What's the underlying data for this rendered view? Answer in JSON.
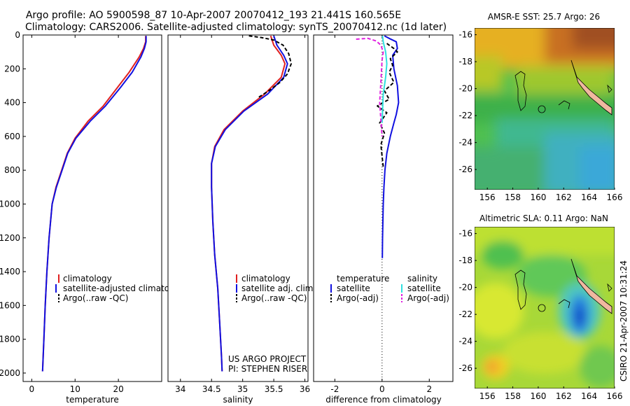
{
  "title_line1": "Argo profile: AO 5900598_87 10-Apr-2007 20070412_193 21.441S 160.565E",
  "title_line2": "Climatology: CARS2006. Satellite-adjusted climatology: synTS_20070412.nc (1d later)",
  "credits": [
    "US ARGO PROJECT",
    "PI: STEPHEN RISER"
  ],
  "timestamp": "CSIRO 21-Apr-2007 10:31:24",
  "colors": {
    "red": "#e02020",
    "blue": "#1010e0",
    "black": "#000000",
    "cyan": "#30e0e0",
    "magenta": "#e020e0"
  },
  "chart_data": [
    {
      "id": "temperature",
      "type": "line",
      "xlabel": "temperature",
      "xlim": [
        -2,
        30
      ],
      "ylim": [
        2050,
        0
      ],
      "xticks": [
        0,
        10,
        20
      ],
      "yticks": [
        0,
        200,
        400,
        600,
        800,
        1000,
        1200,
        1400,
        1600,
        1800,
        2000
      ],
      "legend": {
        "placement": "lower-center",
        "entries": [
          {
            "label": "climatology",
            "color": "#e02020"
          },
          {
            "label": "satellite-adjusted climatology",
            "color": "#1010e0"
          },
          {
            "label": "Argo(..raw -QC)",
            "color": "#000000"
          }
        ]
      },
      "series": [
        {
          "name": "climatology",
          "color": "#e02020",
          "dash": false,
          "x": [
            26.3,
            26.3,
            25.8,
            24.8,
            22.5,
            19.8,
            16.5,
            13.0,
            10.0,
            8.2,
            6.9,
            5.6,
            4.7,
            4.0,
            3.5,
            3.1,
            2.8,
            2.5
          ],
          "y": [
            5,
            40,
            80,
            130,
            220,
            310,
            420,
            510,
            610,
            700,
            800,
            900,
            1000,
            1200,
            1400,
            1600,
            1800,
            1990
          ]
        },
        {
          "name": "satellite-adjusted climatology",
          "color": "#1010e0",
          "dash": false,
          "x": [
            26.4,
            26.4,
            26.0,
            25.2,
            23.2,
            20.5,
            17.0,
            13.5,
            10.2,
            8.3,
            7.0,
            5.7,
            4.7,
            4.0,
            3.5,
            3.1,
            2.8,
            2.5
          ],
          "y": [
            5,
            40,
            80,
            130,
            220,
            310,
            420,
            510,
            610,
            700,
            800,
            900,
            1000,
            1200,
            1400,
            1600,
            1800,
            1990
          ]
        }
      ]
    },
    {
      "id": "salinity",
      "type": "line",
      "xlabel": "salinity",
      "xlim": [
        33.8,
        36.05
      ],
      "ylim": [
        2050,
        0
      ],
      "xticks": [
        34,
        34.5,
        35,
        35.5,
        36
      ],
      "yticks": [],
      "legend": {
        "placement": "lower-center",
        "entries": [
          {
            "label": "climatology",
            "color": "#e02020"
          },
          {
            "label": "satellite adj. clim.",
            "color": "#1010e0"
          },
          {
            "label": "Argo(..raw -QC)",
            "color": "#000000"
          }
        ]
      },
      "series": [
        {
          "name": "climatology",
          "color": "#e02020",
          "dash": false,
          "x": [
            35.45,
            35.5,
            35.62,
            35.68,
            35.62,
            35.35,
            35.0,
            34.7,
            34.55,
            34.5,
            34.5,
            34.52,
            34.55,
            34.6,
            34.63,
            34.66,
            34.67
          ],
          "y": [
            5,
            60,
            120,
            170,
            250,
            350,
            450,
            560,
            660,
            760,
            900,
            1100,
            1300,
            1500,
            1700,
            1900,
            1990
          ]
        },
        {
          "name": "satellite adj. clim.",
          "color": "#1010e0",
          "dash": false,
          "x": [
            35.5,
            35.55,
            35.66,
            35.72,
            35.66,
            35.4,
            35.02,
            34.72,
            34.56,
            34.5,
            34.5,
            34.52,
            34.55,
            34.6,
            34.63,
            34.66,
            34.67
          ],
          "y": [
            5,
            60,
            120,
            170,
            250,
            350,
            450,
            560,
            660,
            760,
            900,
            1100,
            1300,
            1500,
            1700,
            1900,
            1990
          ]
        },
        {
          "name": "Argo(..raw -QC)",
          "color": "#000000",
          "dash": true,
          "x": [
            35.1,
            35.3,
            35.5,
            35.65,
            35.74,
            35.78,
            35.72,
            35.6,
            35.42,
            35.25
          ],
          "y": [
            5,
            15,
            30,
            60,
            110,
            170,
            230,
            280,
            330,
            370
          ]
        }
      ]
    },
    {
      "id": "difference",
      "type": "line",
      "xlabel": "difference from climatology",
      "xlim": [
        -2.9,
        3.0
      ],
      "ylim": [
        2050,
        0
      ],
      "xticks": [
        -2,
        0,
        2
      ],
      "yticks": [],
      "legend": {
        "placement": "lower-center",
        "entries": [
          {
            "label": "temperature",
            "color": "",
            "group": "temperature"
          },
          {
            "label": "satellite",
            "color": "#1010e0",
            "group": "temperature"
          },
          {
            "label": "Argo(-adj)",
            "color": "#000000",
            "group": "temperature"
          },
          {
            "label": "salinity",
            "color": "",
            "group": "salinity"
          },
          {
            "label": "satellite",
            "color": "#30e0e0",
            "group": "salinity"
          },
          {
            "label": "Argo(-adj)",
            "color": "#e020e0",
            "group": "salinity"
          }
        ]
      },
      "series": [
        {
          "name": "temperature satellite",
          "color": "#1010e0",
          "dash": false,
          "x": [
            0.1,
            0.3,
            0.6,
            0.65,
            0.45,
            0.5,
            0.65,
            0.7,
            0.6,
            0.5,
            0.35,
            0.2,
            0.12,
            0.08,
            0.05,
            0.02,
            0.01
          ],
          "y": [
            5,
            20,
            40,
            80,
            120,
            200,
            300,
            400,
            470,
            520,
            600,
            700,
            800,
            900,
            1000,
            1200,
            1320
          ]
        },
        {
          "name": "temperature Argo(-adj)",
          "color": "#000000",
          "dash": true,
          "x": [
            0.2,
            0.5,
            0.65,
            0.35,
            0.45,
            0.3,
            0.5,
            0.1,
            0.3,
            -0.2,
            0.2,
            -0.1,
            0.1,
            -0.05,
            0.05
          ],
          "y": [
            50,
            80,
            100,
            140,
            180,
            220,
            280,
            330,
            380,
            420,
            460,
            520,
            580,
            650,
            780
          ]
        },
        {
          "name": "salinity satellite",
          "color": "#30e0e0",
          "dash": false,
          "x": [
            0.02,
            0.05,
            0.15,
            0.2,
            0.15,
            0.05,
            0.02,
            0.0
          ],
          "y": [
            5,
            40,
            100,
            170,
            250,
            350,
            450,
            520
          ]
        },
        {
          "name": "salinity Argo(-adj)",
          "color": "#e020e0",
          "dash": true,
          "x": [
            -1.1,
            -0.6,
            -0.25,
            -0.05,
            0.05,
            0.0,
            -0.02,
            -0.05,
            -0.1,
            -0.05,
            0.0
          ],
          "y": [
            25,
            20,
            35,
            60,
            100,
            150,
            200,
            280,
            400,
            500,
            600
          ]
        }
      ]
    },
    {
      "id": "sst_map",
      "type": "heatmap",
      "title": "AMSR-E SST: 25.7  Argo: 26",
      "xlim": [
        155,
        166
      ],
      "ylim": [
        -27.5,
        -15.5
      ],
      "xticks": [
        156,
        158,
        160,
        162,
        164,
        166
      ],
      "yticks": [
        -16,
        -18,
        -20,
        -22,
        -24,
        -26
      ]
    },
    {
      "id": "sla_map",
      "type": "heatmap",
      "title": "Altimetric SLA: 0.11  Argo: NaN",
      "xlim": [
        155,
        166
      ],
      "ylim": [
        -27.5,
        -15.5
      ],
      "xticks": [
        156,
        158,
        160,
        162,
        164,
        166
      ],
      "yticks": [
        -16,
        -18,
        -20,
        -22,
        -24,
        -26
      ]
    }
  ]
}
